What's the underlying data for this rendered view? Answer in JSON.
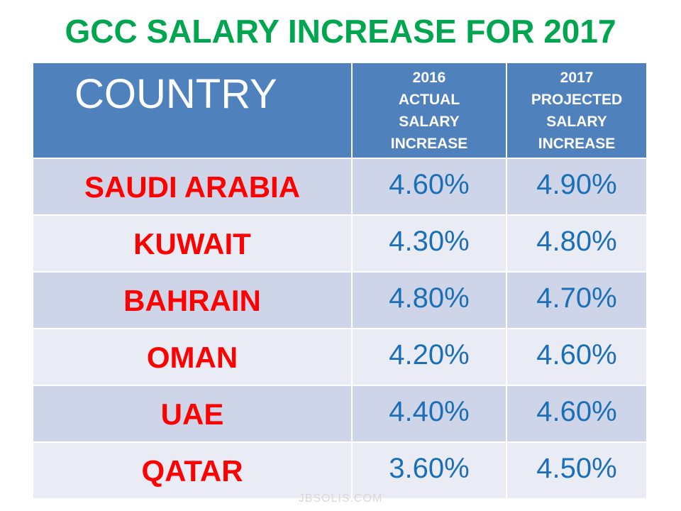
{
  "title": "GCC SALARY INCREASE FOR 2017",
  "table": {
    "header": [
      "COUNTRY",
      "2016\nACTUAL\nSALARY\nINCREASE",
      "2017\nPROJECTED\nSALARY\nINCREASE"
    ],
    "rows": [
      [
        "SAUDI ARABIA",
        "4.60%",
        "4.90%"
      ],
      [
        "KUWAIT",
        "4.30%",
        "4.80%"
      ],
      [
        "BAHRAIN",
        "4.80%",
        "4.70%"
      ],
      [
        "OMAN",
        "4.20%",
        "4.60%"
      ],
      [
        "UAE",
        "4.40%",
        "4.60%"
      ],
      [
        "QATAR",
        "3.60%",
        "4.50%"
      ]
    ]
  },
  "watermark": "JBSOLIS.COM"
}
